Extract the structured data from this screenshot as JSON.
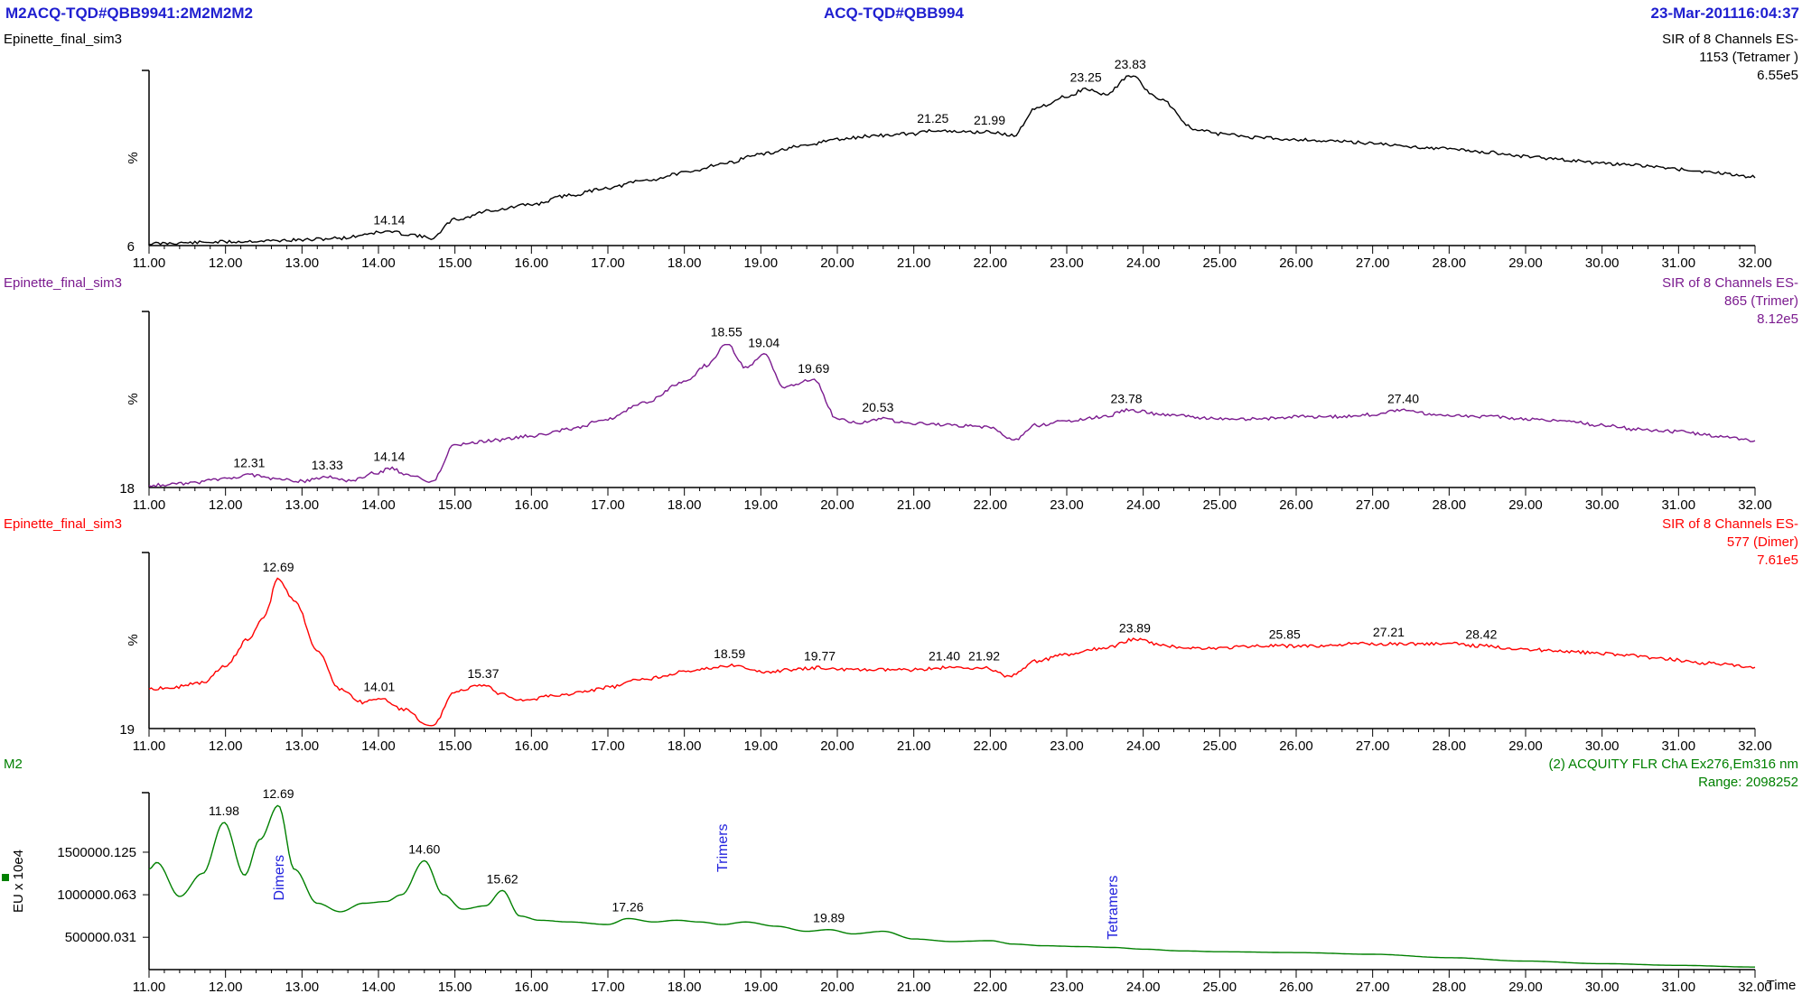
{
  "header": {
    "left": "M2ACQ-TQD#QBB9941:2M2M2M2",
    "center": "ACQ-TQD#QBB994",
    "right": "23-Mar-201116:04:37"
  },
  "colors": {
    "header": "#1f1fd0",
    "tetramer": "#000000",
    "trimer": "#7b1b8f",
    "dimer": "#ff0000",
    "flr": "#008000",
    "annotation": "#2222dd"
  },
  "chart_data": [
    {
      "type": "line",
      "sample": "Epinette_final_sim3",
      "channel_line1": "SIR of 8 Channels ES-",
      "channel_line2": "1153 (Tetramer )",
      "intensity": "6.55e5",
      "ylabel": "%",
      "y_min_label": "6",
      "xlim": [
        11,
        32
      ],
      "ylim": [
        6,
        100
      ],
      "xticks": [
        "11.00",
        "12.00",
        "13.00",
        "14.00",
        "15.00",
        "16.00",
        "17.00",
        "18.00",
        "19.00",
        "20.00",
        "21.00",
        "22.00",
        "23.00",
        "24.00",
        "25.00",
        "26.00",
        "27.00",
        "28.00",
        "29.00",
        "30.00",
        "31.00",
        "32.00"
      ],
      "x": [
        11.0,
        11.5,
        12.0,
        12.5,
        13.0,
        13.5,
        14.0,
        14.14,
        14.4,
        14.7,
        15.0,
        15.5,
        16.0,
        16.5,
        17.0,
        17.5,
        18.0,
        18.5,
        19.0,
        19.5,
        20.0,
        20.5,
        21.0,
        21.25,
        21.5,
        21.99,
        22.3,
        22.6,
        23.0,
        23.25,
        23.5,
        23.83,
        24.2,
        24.7,
        25.0,
        25.5,
        26.0,
        26.5,
        27.0,
        27.5,
        28.0,
        28.5,
        29.0,
        29.5,
        30.0,
        30.5,
        31.0,
        31.5,
        32.0
      ],
      "y": [
        7,
        7.5,
        8,
        8.5,
        9,
        10,
        13,
        13.5,
        12,
        10,
        20,
        25,
        28,
        33,
        37,
        41,
        45,
        50,
        55,
        59,
        63,
        65,
        66,
        68,
        67,
        67,
        65,
        80,
        86,
        90,
        87,
        97,
        85,
        68,
        66,
        64,
        63,
        62,
        61,
        59,
        58,
        56,
        54,
        52,
        50,
        49,
        47,
        45,
        43
      ],
      "peak_labels": [
        {
          "x": 14.14,
          "y": 13.5,
          "text": "14.14"
        },
        {
          "x": 21.25,
          "y": 68,
          "text": "21.25"
        },
        {
          "x": 21.99,
          "y": 67,
          "text": "21.99"
        },
        {
          "x": 23.25,
          "y": 90,
          "text": "23.25"
        },
        {
          "x": 23.83,
          "y": 97,
          "text": "23.83"
        }
      ]
    },
    {
      "type": "line",
      "sample": "Epinette_final_sim3",
      "channel_line1": "SIR of 8 Channels ES-",
      "channel_line2": "865 (Trimer)",
      "intensity": "8.12e5",
      "ylabel": "%",
      "y_min_label": "18",
      "xlim": [
        11,
        32
      ],
      "ylim": [
        18,
        100
      ],
      "xticks": [
        "11.00",
        "12.00",
        "13.00",
        "14.00",
        "15.00",
        "16.00",
        "17.00",
        "18.00",
        "19.00",
        "20.00",
        "21.00",
        "22.00",
        "23.00",
        "24.00",
        "25.00",
        "26.00",
        "27.00",
        "28.00",
        "29.00",
        "30.00",
        "31.00",
        "32.00"
      ],
      "x": [
        11.0,
        11.5,
        12.0,
        12.31,
        12.6,
        13.0,
        13.33,
        13.6,
        14.0,
        14.14,
        14.4,
        14.7,
        15.0,
        15.5,
        16.0,
        16.5,
        17.0,
        17.5,
        18.0,
        18.3,
        18.55,
        18.8,
        19.04,
        19.3,
        19.69,
        20.0,
        20.3,
        20.53,
        21.0,
        21.5,
        22.0,
        22.3,
        22.6,
        23.0,
        23.5,
        23.78,
        24.3,
        25.0,
        25.5,
        26.0,
        26.5,
        27.0,
        27.4,
        27.8,
        28.5,
        29.0,
        29.5,
        30.0,
        30.5,
        31.0,
        31.5,
        32.0
      ],
      "y": [
        19,
        20,
        22,
        24,
        22,
        21,
        23,
        21,
        25,
        27,
        24,
        21,
        38,
        40,
        42,
        45,
        50,
        58,
        67,
        75,
        85,
        74,
        80,
        65,
        68,
        50,
        48,
        50,
        48,
        47,
        46,
        40,
        47,
        49,
        51,
        54,
        52,
        50,
        50,
        51,
        51,
        52,
        54,
        52,
        51,
        50,
        49,
        47,
        45,
        44,
        42,
        40
      ],
      "peak_labels": [
        {
          "x": 12.31,
          "y": 24,
          "text": "12.31"
        },
        {
          "x": 13.33,
          "y": 23,
          "text": "13.33"
        },
        {
          "x": 14.14,
          "y": 27,
          "text": "14.14"
        },
        {
          "x": 18.55,
          "y": 85,
          "text": "18.55"
        },
        {
          "x": 19.04,
          "y": 80,
          "text": "19.04"
        },
        {
          "x": 19.69,
          "y": 68,
          "text": "19.69"
        },
        {
          "x": 20.53,
          "y": 50,
          "text": "20.53"
        },
        {
          "x": 23.78,
          "y": 54,
          "text": "23.78"
        },
        {
          "x": 27.4,
          "y": 54,
          "text": "27.40"
        }
      ]
    },
    {
      "type": "line",
      "sample": "Epinette_final_sim3",
      "channel_line1": "SIR of 8 Channels ES-",
      "channel_line2": "577 (Dimer)",
      "intensity": "7.61e5",
      "ylabel": "%",
      "y_min_label": "19",
      "xlim": [
        11,
        32
      ],
      "ylim": [
        19,
        100
      ],
      "xticks": [
        "11.00",
        "12.00",
        "13.00",
        "14.00",
        "15.00",
        "16.00",
        "17.00",
        "18.00",
        "19.00",
        "20.00",
        "21.00",
        "22.00",
        "23.00",
        "24.00",
        "25.00",
        "26.00",
        "27.00",
        "28.00",
        "29.00",
        "30.00",
        "31.00",
        "32.00"
      ],
      "x": [
        11.0,
        11.3,
        11.7,
        12.0,
        12.3,
        12.5,
        12.69,
        12.9,
        13.2,
        13.5,
        13.8,
        14.01,
        14.3,
        14.7,
        15.0,
        15.37,
        15.6,
        15.9,
        16.3,
        16.7,
        17.0,
        17.5,
        18.0,
        18.59,
        19.0,
        19.4,
        19.77,
        20.2,
        20.7,
        21.0,
        21.4,
        21.92,
        22.25,
        22.6,
        23.0,
        23.5,
        23.89,
        24.3,
        24.7,
        25.0,
        25.5,
        25.85,
        26.3,
        26.8,
        27.21,
        27.6,
        28.0,
        28.42,
        28.8,
        29.3,
        29.8,
        30.3,
        30.8,
        31.4,
        32.0
      ],
      "y": [
        37,
        38,
        40,
        48,
        60,
        70,
        88,
        78,
        55,
        37,
        31,
        33,
        28,
        20,
        36,
        39,
        35,
        32,
        34,
        36,
        38,
        42,
        45,
        48,
        45,
        46,
        47,
        46,
        46,
        46,
        47,
        47,
        43,
        50,
        53,
        56,
        60,
        57,
        56,
        56,
        57,
        57,
        57,
        58,
        58,
        58,
        58,
        57,
        56,
        55,
        54,
        53,
        51,
        49,
        47
      ],
      "peak_labels": [
        {
          "x": 12.69,
          "y": 88,
          "text": "12.69"
        },
        {
          "x": 14.01,
          "y": 33,
          "text": "14.01"
        },
        {
          "x": 15.37,
          "y": 39,
          "text": "15.37"
        },
        {
          "x": 18.59,
          "y": 48,
          "text": "18.59"
        },
        {
          "x": 19.77,
          "y": 47,
          "text": "19.77"
        },
        {
          "x": 21.4,
          "y": 47,
          "text": "21.40"
        },
        {
          "x": 21.92,
          "y": 47,
          "text": "21.92"
        },
        {
          "x": 23.89,
          "y": 60,
          "text": "23.89"
        },
        {
          "x": 25.85,
          "y": 57,
          "text": "25.85"
        },
        {
          "x": 27.21,
          "y": 58,
          "text": "27.21"
        },
        {
          "x": 28.42,
          "y": 57,
          "text": "28.42"
        }
      ]
    },
    {
      "type": "line",
      "sample": "M2",
      "channel_line1": "(2) ACQUITY FLR ChA Ex276,Em316 nm",
      "channel_line2": "Range: 2098252",
      "ylabel": "EU x 10e4",
      "xlabel": "Time",
      "xlim": [
        11,
        32
      ],
      "ylim": [
        120000,
        2200000
      ],
      "yticks": [
        "1500000.125",
        "1000000.063",
        "500000.031"
      ],
      "ytick_values": [
        1500000.125,
        1000000.063,
        500000.031
      ],
      "xticks": [
        "11.00",
        "12.00",
        "13.00",
        "14.00",
        "15.00",
        "16.00",
        "17.00",
        "18.00",
        "19.00",
        "20.00",
        "21.00",
        "22.00",
        "23.00",
        "24.00",
        "25.00",
        "26.00",
        "27.00",
        "28.00",
        "29.00",
        "30.00",
        "31.00",
        "32.00"
      ],
      "x": [
        11.0,
        11.1,
        11.4,
        11.7,
        11.98,
        12.25,
        12.45,
        12.69,
        12.9,
        13.2,
        13.5,
        13.8,
        14.1,
        14.3,
        14.6,
        14.85,
        15.1,
        15.4,
        15.62,
        15.85,
        16.1,
        16.5,
        17.0,
        17.26,
        17.6,
        17.9,
        18.2,
        18.5,
        18.8,
        19.2,
        19.6,
        19.89,
        20.2,
        20.6,
        21.0,
        21.5,
        22.0,
        22.3,
        22.7,
        23.2,
        23.6,
        24.0,
        24.5,
        25.0,
        26.0,
        27.0,
        28.0,
        29.0,
        30.0,
        31.0,
        32.0
      ],
      "y": [
        1300000,
        1380000,
        980000,
        1250000,
        1850000,
        1230000,
        1650000,
        2050000,
        1300000,
        900000,
        800000,
        900000,
        920000,
        1000000,
        1400000,
        1000000,
        830000,
        870000,
        1050000,
        750000,
        700000,
        680000,
        650000,
        720000,
        680000,
        700000,
        680000,
        650000,
        680000,
        630000,
        570000,
        590000,
        540000,
        570000,
        480000,
        450000,
        460000,
        420000,
        400000,
        390000,
        380000,
        360000,
        340000,
        330000,
        320000,
        300000,
        260000,
        220000,
        190000,
        170000,
        150000
      ],
      "peak_labels": [
        {
          "x": 11.98,
          "y": 1850000,
          "text": "11.98"
        },
        {
          "x": 12.69,
          "y": 2050000,
          "text": "12.69"
        },
        {
          "x": 14.6,
          "y": 1400000,
          "text": "14.60"
        },
        {
          "x": 15.62,
          "y": 1050000,
          "text": "15.62"
        },
        {
          "x": 17.26,
          "y": 720000,
          "text": "17.26"
        },
        {
          "x": 19.89,
          "y": 590000,
          "text": "19.89"
        }
      ],
      "annotations": [
        {
          "x": 12.7,
          "y": 1200000,
          "text": "Dimers"
        },
        {
          "x": 18.5,
          "y": 1550000,
          "text": "Trimers"
        },
        {
          "x": 23.6,
          "y": 850000,
          "text": "Tetramers"
        }
      ]
    }
  ]
}
